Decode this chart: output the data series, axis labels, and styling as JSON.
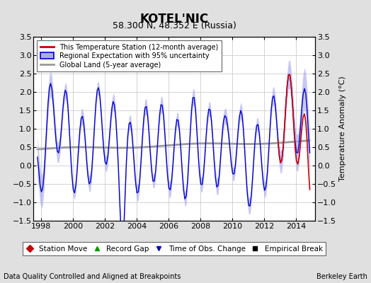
{
  "title": "KOTEL'NIC",
  "subtitle": "58.300 N, 48.352 E (Russia)",
  "xlabel_bottom": "Data Quality Controlled and Aligned at Breakpoints",
  "xlabel_right": "Berkeley Earth",
  "ylabel_right": "Temperature Anomaly (°C)",
  "xmin": 1997.5,
  "xmax": 2015.2,
  "ymin": -1.5,
  "ymax": 3.5,
  "yticks": [
    -1.5,
    -1.0,
    -0.5,
    0.0,
    0.5,
    1.0,
    1.5,
    2.0,
    2.5,
    3.0,
    3.5
  ],
  "xticks": [
    1998,
    2000,
    2002,
    2004,
    2006,
    2008,
    2010,
    2012,
    2014
  ],
  "bg_color": "#e0e0e0",
  "plot_bg_color": "#ffffff",
  "grid_color": "#cccccc",
  "regional_color": "#0000cc",
  "regional_fill_color": "#aaaaee",
  "station_color": "#cc0000",
  "global_color": "#999999",
  "legend_labels": [
    "This Temperature Station (12-month average)",
    "Regional Expectation with 95% uncertainty",
    "Global Land (5-year average)"
  ],
  "bottom_legend_labels": [
    "Station Move",
    "Record Gap",
    "Time of Obs. Change",
    "Empirical Break"
  ],
  "bottom_legend_colors": [
    "#cc0000",
    "#009900",
    "#0000cc",
    "#000000"
  ],
  "bottom_legend_markers": [
    "D",
    "^",
    "v",
    "s"
  ]
}
